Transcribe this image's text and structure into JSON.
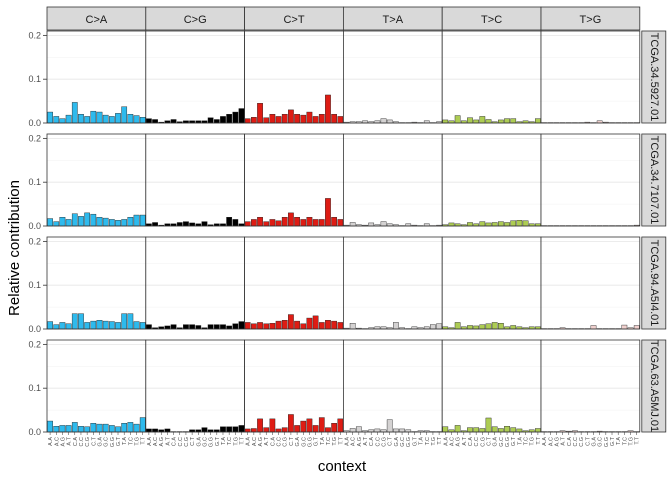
{
  "chart_data": {
    "type": "bar",
    "xlabel": "context",
    "ylabel": "Relative contribution",
    "ylim": [
      0,
      0.21
    ],
    "y_ticks": [
      "0.0",
      "0.1",
      "0.2"
    ],
    "y_tick_values": [
      0,
      0.1,
      0.2
    ],
    "grid": true,
    "mutation_types": [
      "C>A",
      "C>G",
      "C>T",
      "T>A",
      "T>C",
      "T>G"
    ],
    "colors": [
      "#2EBAED",
      "#000000",
      "#DE1C14",
      "#D4D2D2",
      "#ADCC54",
      "#F0D0CE"
    ],
    "contexts": [
      "A.A",
      "A.C",
      "A.G",
      "A.T",
      "C.A",
      "C.C",
      "C.G",
      "C.T",
      "G.A",
      "G.C",
      "G.G",
      "G.T",
      "T.A",
      "T.C",
      "T.G",
      "T.T"
    ],
    "samples": [
      {
        "name": "TCGA.34.5927.01",
        "values": [
          [
            0.025,
            0.015,
            0.01,
            0.018,
            0.047,
            0.02,
            0.015,
            0.027,
            0.025,
            0.018,
            0.015,
            0.022,
            0.037,
            0.02,
            0.017,
            0.013
          ],
          [
            0.01,
            0.008,
            0.002,
            0.005,
            0.008,
            0.003,
            0.005,
            0.005,
            0.005,
            0.005,
            0.012,
            0.008,
            0.015,
            0.02,
            0.025,
            0.033
          ],
          [
            0.01,
            0.013,
            0.045,
            0.012,
            0.02,
            0.015,
            0.02,
            0.03,
            0.02,
            0.018,
            0.025,
            0.015,
            0.02,
            0.064,
            0.02,
            0.015
          ],
          [
            0.002,
            0.003,
            0.003,
            0.005,
            0.003,
            0.005,
            0.01,
            0.007,
            0.003,
            0.001,
            0.001,
            0.002,
            0.001,
            0.005,
            0.001,
            0.003
          ],
          [
            0.007,
            0.005,
            0.017,
            0.005,
            0.012,
            0.007,
            0.015,
            0.008,
            0.003,
            0.007,
            0.01,
            0.01,
            0.003,
            0.005,
            0.003,
            0.01
          ],
          [
            0.001,
            0.001,
            0.001,
            0.001,
            0.001,
            0.001,
            0.001,
            0.002,
            0.001,
            0.005,
            0.002,
            0.001,
            0.001,
            0.001,
            0.001,
            0.001
          ]
        ]
      },
      {
        "name": "TCGA.34.7107.01",
        "values": [
          [
            0.017,
            0.01,
            0.02,
            0.015,
            0.028,
            0.022,
            0.03,
            0.027,
            0.02,
            0.018,
            0.015,
            0.013,
            0.015,
            0.02,
            0.025,
            0.025
          ],
          [
            0.005,
            0.008,
            0.002,
            0.005,
            0.005,
            0.008,
            0.01,
            0.007,
            0.005,
            0.01,
            0.003,
            0.005,
            0.005,
            0.02,
            0.015,
            0.005
          ],
          [
            0.01,
            0.015,
            0.02,
            0.01,
            0.015,
            0.012,
            0.02,
            0.03,
            0.02,
            0.015,
            0.02,
            0.015,
            0.015,
            0.063,
            0.02,
            0.015
          ],
          [
            0.002,
            0.008,
            0.003,
            0.002,
            0.007,
            0.003,
            0.01,
            0.005,
            0.003,
            0.001,
            0.005,
            0.002,
            0.001,
            0.005,
            0.001,
            0.002
          ],
          [
            0.003,
            0.007,
            0.005,
            0.003,
            0.008,
            0.005,
            0.01,
            0.007,
            0.008,
            0.01,
            0.008,
            0.012,
            0.013,
            0.012,
            0.005,
            0.005
          ],
          [
            0.001,
            0.001,
            0.001,
            0.001,
            0.001,
            0.001,
            0.001,
            0.001,
            0.001,
            0.001,
            0.001,
            0.001,
            0.001,
            0.001,
            0.001,
            0.002
          ]
        ]
      },
      {
        "name": "TCGA.94.A5I4.01",
        "values": [
          [
            0.017,
            0.01,
            0.015,
            0.012,
            0.035,
            0.035,
            0.015,
            0.018,
            0.02,
            0.018,
            0.017,
            0.015,
            0.035,
            0.035,
            0.017,
            0.015
          ],
          [
            0.01,
            0.003,
            0.005,
            0.007,
            0.01,
            0.003,
            0.01,
            0.01,
            0.008,
            0.003,
            0.01,
            0.01,
            0.01,
            0.007,
            0.012,
            0.017
          ],
          [
            0.015,
            0.012,
            0.015,
            0.012,
            0.013,
            0.018,
            0.02,
            0.033,
            0.018,
            0.012,
            0.025,
            0.03,
            0.015,
            0.02,
            0.018,
            0.015
          ],
          [
            0.002,
            0.013,
            0.002,
            0.001,
            0.003,
            0.005,
            0.005,
            0.003,
            0.015,
            0.003,
            0.001,
            0.005,
            0.003,
            0.005,
            0.01,
            0.012
          ],
          [
            0.005,
            0.003,
            0.015,
            0.005,
            0.008,
            0.007,
            0.01,
            0.012,
            0.015,
            0.013,
            0.005,
            0.008,
            0.005,
            0.003,
            0.005,
            0.005
          ],
          [
            0.001,
            0.001,
            0.001,
            0.003,
            0.001,
            0.001,
            0.001,
            0.001,
            0.008,
            0.001,
            0.001,
            0.001,
            0.001,
            0.009,
            0.003,
            0.008
          ]
        ]
      },
      {
        "name": "TCGA.63.A5MJ.01",
        "values": [
          [
            0.025,
            0.013,
            0.015,
            0.015,
            0.022,
            0.013,
            0.012,
            0.02,
            0.018,
            0.018,
            0.015,
            0.012,
            0.02,
            0.022,
            0.018,
            0.033
          ],
          [
            0.007,
            0.007,
            0.005,
            0.007,
            0.001,
            0.001,
            0.001,
            0.005,
            0.005,
            0.01,
            0.005,
            0.005,
            0.012,
            0.012,
            0.012,
            0.015
          ],
          [
            0.007,
            0.008,
            0.03,
            0.01,
            0.03,
            0.007,
            0.01,
            0.04,
            0.015,
            0.025,
            0.03,
            0.015,
            0.033,
            0.01,
            0.02,
            0.03
          ],
          [
            0.003,
            0.008,
            0.012,
            0.003,
            0.005,
            0.007,
            0.005,
            0.028,
            0.007,
            0.007,
            0.005,
            0.001,
            0.003,
            0.003,
            0.001,
            0.001
          ],
          [
            0.012,
            0.005,
            0.015,
            0.003,
            0.01,
            0.01,
            0.008,
            0.032,
            0.012,
            0.008,
            0.013,
            0.01,
            0.007,
            0.003,
            0.005,
            0.008
          ],
          [
            0.001,
            0.001,
            0.001,
            0.003,
            0.002,
            0.003,
            0.001,
            0.001,
            0.001,
            0.002,
            0.001,
            0.001,
            0.001,
            0.001,
            0.003,
            0.001
          ]
        ]
      }
    ]
  }
}
